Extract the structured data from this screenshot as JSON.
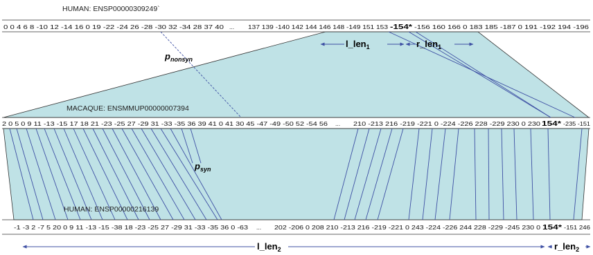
{
  "labels": {
    "top": "HUMAN: ENSP00000309249`",
    "middle": "MACAQUE: ENSMMUP00000007394",
    "bottom": "HUMAN: ENSP00000216139"
  },
  "sequences": {
    "top_left": "0 0 4 6 8 -10 12 -14 16 0 19 -22 -24 26 -28 -30 32 -34 28 37 40",
    "top_mid": "137 139 -140 142 144 146 148 -149 151 153",
    "top_bold": "-154*",
    "top_right": "-156 160 166 0 183 185 -187 0 191 -192 194 -196",
    "mid_left": "2 0 5 0 9 11 -13 -15 17 18 21 -23 -25 27 -29 31 -33 -35 36 39 41 0 41 30 45 -47 -49 -50 52 -54 56",
    "mid_mid": "210 -213 216 -219 -221 0 -224 -226 228 -229 230 0 230",
    "mid_bold": "154*",
    "mid_right": "-235 -151",
    "bot_left": "-1 -3 2 -7 5 20 0 9 11 -13 -15 -38 18 -23 -25 27 -29 31 -33 -35 36 0 -63",
    "bot_mid": "202 -206 0 208 210 -213 216 -219 -221 0 243 -224 -226 244 228 -229 -245 230 0",
    "bot_bold": "154*",
    "bot_right": "-151 246",
    "ellipsis": "..."
  },
  "params": {
    "p_nonsyn": {
      "main": "p",
      "sub": "nonsyn"
    },
    "p_syn": {
      "main": "p",
      "sub": "syn"
    }
  },
  "lengths": {
    "l_len1": {
      "main": "l_len",
      "sub": "1"
    },
    "r_len1": {
      "main": "r_len",
      "sub": "1"
    },
    "l_len2": {
      "main": "l_len",
      "sub": "2"
    },
    "r_len2": {
      "main": "r_len",
      "sub": "2"
    }
  },
  "colors": {
    "fill": "#bfe2e6",
    "stroke": "#333333",
    "line": "#3d4fa3",
    "arrow": "#3d4fa3"
  }
}
